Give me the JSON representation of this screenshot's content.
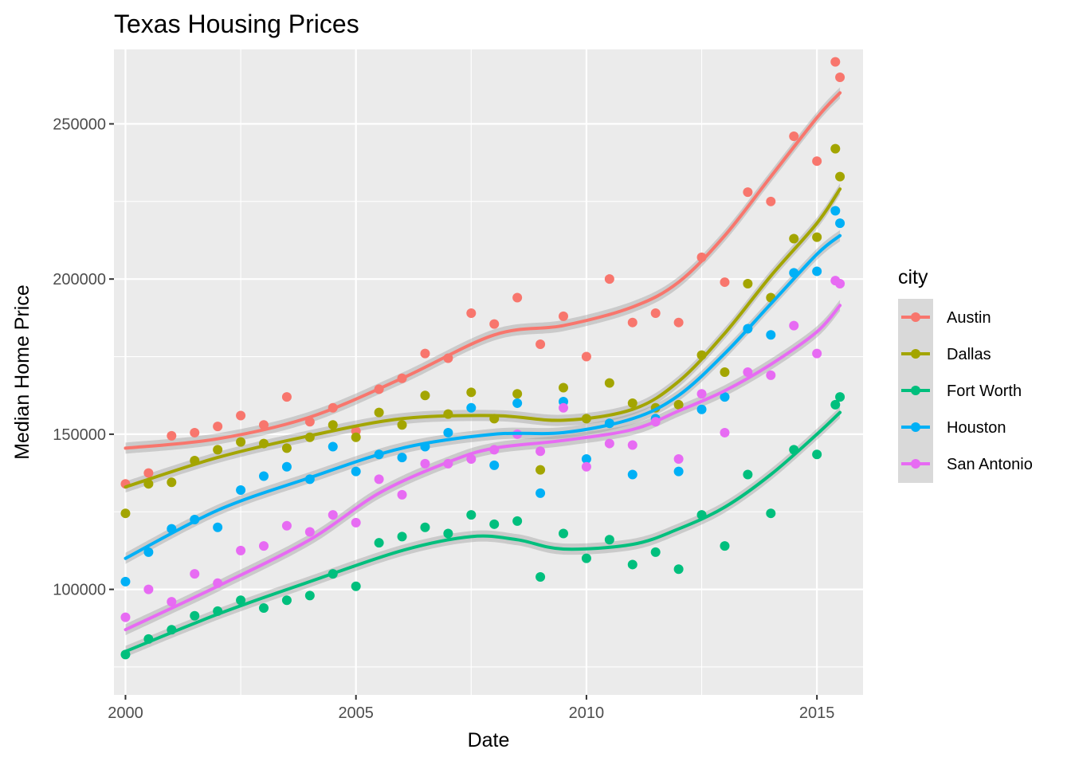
{
  "chart_data": {
    "type": "scatter",
    "title": "Texas Housing Prices",
    "xlabel": "Date",
    "ylabel": "Median Home Price",
    "xlim": [
      1999.75,
      2016.0
    ],
    "ylim": [
      66000,
      274000
    ],
    "x_ticks": [
      2000,
      2005,
      2010,
      2015
    ],
    "x_tick_labels": [
      "2000",
      "2005",
      "2010",
      "2015"
    ],
    "y_ticks": [
      100000,
      150000,
      200000,
      250000
    ],
    "y_tick_labels": [
      "100000",
      "150000",
      "200000",
      "250000"
    ],
    "grid": true,
    "legend": {
      "title": "city",
      "position": "right"
    },
    "series": [
      {
        "name": "Austin",
        "color": "#F8766D",
        "trend": [
          [
            2000,
            145500
          ],
          [
            2002,
            148500
          ],
          [
            2004,
            155500
          ],
          [
            2006,
            168000
          ],
          [
            2008,
            182000
          ],
          [
            2009.5,
            185000
          ],
          [
            2011,
            191000
          ],
          [
            2012,
            199000
          ],
          [
            2013,
            214000
          ],
          [
            2014,
            233000
          ],
          [
            2015,
            252000
          ],
          [
            2015.5,
            260000
          ]
        ],
        "points": [
          [
            2000,
            134000
          ],
          [
            2000.5,
            137500
          ],
          [
            2001,
            149500
          ],
          [
            2001.5,
            150500
          ],
          [
            2002,
            152500
          ],
          [
            2002.5,
            156000
          ],
          [
            2003,
            153000
          ],
          [
            2003.5,
            162000
          ],
          [
            2004,
            154000
          ],
          [
            2004.5,
            158500
          ],
          [
            2005,
            151000
          ],
          [
            2005.5,
            164500
          ],
          [
            2006,
            168000
          ],
          [
            2006.5,
            176000
          ],
          [
            2007,
            174500
          ],
          [
            2007.5,
            189000
          ],
          [
            2008,
            185500
          ],
          [
            2008.5,
            194000
          ],
          [
            2009,
            179000
          ],
          [
            2009.5,
            188000
          ],
          [
            2010,
            175000
          ],
          [
            2010.5,
            200000
          ],
          [
            2011,
            186000
          ],
          [
            2011.5,
            189000
          ],
          [
            2012,
            186000
          ],
          [
            2012.5,
            207000
          ],
          [
            2013,
            199000
          ],
          [
            2013.5,
            228000
          ],
          [
            2014,
            225000
          ],
          [
            2014.5,
            246000
          ],
          [
            2015,
            238000
          ],
          [
            2015.4,
            270000
          ],
          [
            2015.5,
            265000
          ]
        ]
      },
      {
        "name": "Dallas",
        "color": "#A3A500",
        "trend": [
          [
            2000,
            133000
          ],
          [
            2002,
            142500
          ],
          [
            2004,
            149500
          ],
          [
            2006,
            155000
          ],
          [
            2008,
            156000
          ],
          [
            2009.5,
            154500
          ],
          [
            2011,
            158000
          ],
          [
            2012,
            167000
          ],
          [
            2013,
            182500
          ],
          [
            2014,
            201000
          ],
          [
            2015,
            218000
          ],
          [
            2015.5,
            229000
          ]
        ],
        "points": [
          [
            2000,
            124500
          ],
          [
            2000.5,
            134000
          ],
          [
            2001,
            134500
          ],
          [
            2001.5,
            141500
          ],
          [
            2002,
            145000
          ],
          [
            2002.5,
            147500
          ],
          [
            2003,
            147000
          ],
          [
            2003.5,
            145500
          ],
          [
            2004,
            149000
          ],
          [
            2004.5,
            153000
          ],
          [
            2005,
            149000
          ],
          [
            2005.5,
            157000
          ],
          [
            2006,
            153000
          ],
          [
            2006.5,
            162500
          ],
          [
            2007,
            156500
          ],
          [
            2007.5,
            163500
          ],
          [
            2008,
            155000
          ],
          [
            2008.5,
            163000
          ],
          [
            2009,
            138500
          ],
          [
            2009.5,
            165000
          ],
          [
            2010,
            155000
          ],
          [
            2010.5,
            166500
          ],
          [
            2011,
            160000
          ],
          [
            2011.5,
            158500
          ],
          [
            2012,
            159500
          ],
          [
            2012.5,
            175500
          ],
          [
            2013,
            170000
          ],
          [
            2013.5,
            198500
          ],
          [
            2014,
            194000
          ],
          [
            2014.5,
            213000
          ],
          [
            2015,
            213500
          ],
          [
            2015.4,
            242000
          ],
          [
            2015.5,
            233000
          ]
        ]
      },
      {
        "name": "Fort Worth",
        "color": "#00BF7D",
        "trend": [
          [
            2000,
            80000
          ],
          [
            2002,
            92000
          ],
          [
            2004,
            102500
          ],
          [
            2006,
            112500
          ],
          [
            2007.5,
            117000
          ],
          [
            2008.5,
            116000
          ],
          [
            2009.5,
            113000
          ],
          [
            2011,
            114500
          ],
          [
            2012,
            119500
          ],
          [
            2013,
            126500
          ],
          [
            2014,
            137000
          ],
          [
            2015,
            150000
          ],
          [
            2015.5,
            157000
          ]
        ],
        "points": [
          [
            2000,
            79000
          ],
          [
            2000.5,
            84000
          ],
          [
            2001,
            87000
          ],
          [
            2001.5,
            91500
          ],
          [
            2002,
            93000
          ],
          [
            2002.5,
            96500
          ],
          [
            2003,
            94000
          ],
          [
            2003.5,
            96500
          ],
          [
            2004,
            98000
          ],
          [
            2004.5,
            105000
          ],
          [
            2005,
            101000
          ],
          [
            2005.5,
            115000
          ],
          [
            2006,
            117000
          ],
          [
            2006.5,
            120000
          ],
          [
            2007,
            118000
          ],
          [
            2007.5,
            124000
          ],
          [
            2008,
            121000
          ],
          [
            2008.5,
            122000
          ],
          [
            2009,
            104000
          ],
          [
            2009.5,
            118000
          ],
          [
            2010,
            110000
          ],
          [
            2010.5,
            116000
          ],
          [
            2011,
            108000
          ],
          [
            2011.5,
            112000
          ],
          [
            2012,
            106500
          ],
          [
            2012.5,
            124000
          ],
          [
            2013,
            114000
          ],
          [
            2013.5,
            137000
          ],
          [
            2014,
            124500
          ],
          [
            2014.5,
            145000
          ],
          [
            2015,
            143500
          ],
          [
            2015.4,
            159500
          ],
          [
            2015.5,
            162000
          ]
        ]
      },
      {
        "name": "Houston",
        "color": "#00B0F6",
        "trend": [
          [
            2000,
            110000
          ],
          [
            2002,
            125500
          ],
          [
            2004,
            136000
          ],
          [
            2006,
            145500
          ],
          [
            2008,
            150000
          ],
          [
            2009.5,
            150500
          ],
          [
            2011,
            155000
          ],
          [
            2012,
            162500
          ],
          [
            2013,
            176000
          ],
          [
            2014,
            192000
          ],
          [
            2015,
            208000
          ],
          [
            2015.5,
            214000
          ]
        ],
        "points": [
          [
            2000,
            102500
          ],
          [
            2000.5,
            112000
          ],
          [
            2001,
            119500
          ],
          [
            2001.5,
            122500
          ],
          [
            2002,
            120000
          ],
          [
            2002.5,
            132000
          ],
          [
            2003,
            136500
          ],
          [
            2003.5,
            139500
          ],
          [
            2004,
            135500
          ],
          [
            2004.5,
            146000
          ],
          [
            2005,
            138000
          ],
          [
            2005.5,
            143500
          ],
          [
            2006,
            142500
          ],
          [
            2006.5,
            146000
          ],
          [
            2007,
            150500
          ],
          [
            2007.5,
            158500
          ],
          [
            2008,
            140000
          ],
          [
            2008.5,
            160000
          ],
          [
            2009,
            131000
          ],
          [
            2009.5,
            160500
          ],
          [
            2010,
            142000
          ],
          [
            2010.5,
            153500
          ],
          [
            2011,
            137000
          ],
          [
            2011.5,
            155000
          ],
          [
            2012,
            138000
          ],
          [
            2012.5,
            158000
          ],
          [
            2013,
            162000
          ],
          [
            2013.5,
            184000
          ],
          [
            2014,
            182000
          ],
          [
            2014.5,
            202000
          ],
          [
            2015,
            202500
          ],
          [
            2015.4,
            222000
          ],
          [
            2015.5,
            218000
          ]
        ]
      },
      {
        "name": "San Antonio",
        "color": "#E76BF3",
        "trend": [
          [
            2000,
            87000
          ],
          [
            2002,
            101000
          ],
          [
            2004,
            116000
          ],
          [
            2005.5,
            131000
          ],
          [
            2007,
            141000
          ],
          [
            2008,
            145500
          ],
          [
            2009.5,
            148000
          ],
          [
            2011,
            151500
          ],
          [
            2012,
            157500
          ],
          [
            2013,
            164000
          ],
          [
            2014,
            172500
          ],
          [
            2015,
            183000
          ],
          [
            2015.5,
            191500
          ]
        ],
        "points": [
          [
            2000,
            91000
          ],
          [
            2000.5,
            100000
          ],
          [
            2001,
            96000
          ],
          [
            2001.5,
            105000
          ],
          [
            2002,
            102000
          ],
          [
            2002.5,
            112500
          ],
          [
            2003,
            114000
          ],
          [
            2003.5,
            120500
          ],
          [
            2004,
            118500
          ],
          [
            2004.5,
            124000
          ],
          [
            2005,
            121500
          ],
          [
            2005.5,
            135500
          ],
          [
            2006,
            130500
          ],
          [
            2006.5,
            140500
          ],
          [
            2007,
            140500
          ],
          [
            2007.5,
            142000
          ],
          [
            2008,
            145000
          ],
          [
            2008.5,
            150000
          ],
          [
            2009,
            144500
          ],
          [
            2009.5,
            158500
          ],
          [
            2010,
            139500
          ],
          [
            2010.5,
            147000
          ],
          [
            2011,
            146500
          ],
          [
            2011.5,
            154000
          ],
          [
            2012,
            142000
          ],
          [
            2012.5,
            163000
          ],
          [
            2013,
            150500
          ],
          [
            2013.5,
            170000
          ],
          [
            2014,
            169000
          ],
          [
            2014.5,
            185000
          ],
          [
            2015,
            176000
          ],
          [
            2015.4,
            199500
          ],
          [
            2015.5,
            198500
          ]
        ]
      }
    ]
  }
}
